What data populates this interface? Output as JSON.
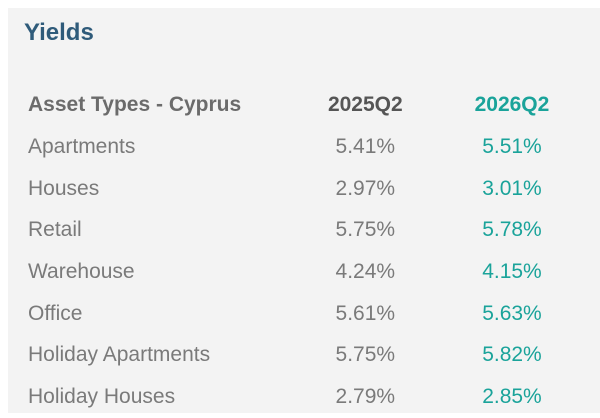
{
  "title": "Yields",
  "table": {
    "headers": {
      "label": "Asset Types - Cyprus",
      "col_a": "2025Q2",
      "col_b": "2026Q2"
    },
    "rows": [
      {
        "label": "Apartments",
        "col_a": "5.41%",
        "col_b": "5.51%"
      },
      {
        "label": "Houses",
        "col_a": "2.97%",
        "col_b": "3.01%"
      },
      {
        "label": "Retail",
        "col_a": "5.75%",
        "col_b": "5.78%"
      },
      {
        "label": "Warehouse",
        "col_a": "4.24%",
        "col_b": "4.15%"
      },
      {
        "label": "Office",
        "col_a": "5.61%",
        "col_b": "5.63%"
      },
      {
        "label": "Holiday Apartments",
        "col_a": "5.75%",
        "col_b": "5.82%"
      },
      {
        "label": "Holiday Houses",
        "col_a": "2.79%",
        "col_b": "2.85%"
      }
    ]
  },
  "colors": {
    "title": "#2f5b7a",
    "accent": "#1aa39a",
    "text": "#7a7a7a",
    "panel": "#f3f3f3"
  }
}
